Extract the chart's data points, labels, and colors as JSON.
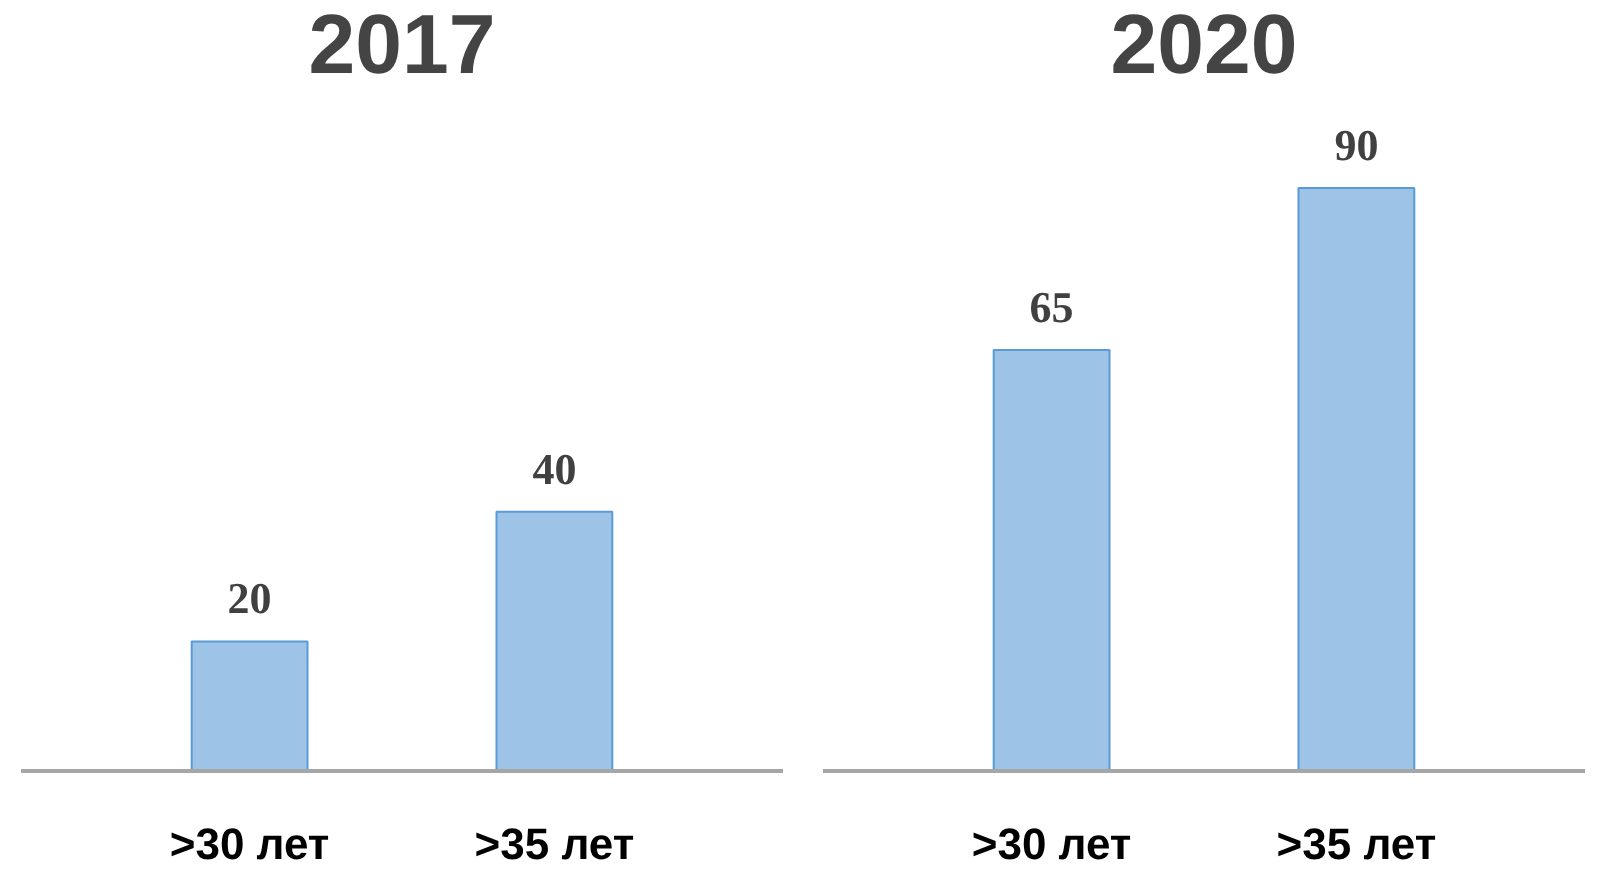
{
  "chart_data": [
    {
      "type": "bar",
      "title": "2017",
      "categories": [
        ">30 лет",
        ">35 лет"
      ],
      "values": [
        20,
        40
      ],
      "color": "#9dc3e6",
      "data_labels": true
    },
    {
      "type": "bar",
      "title": "2020",
      "categories": [
        ">30 лет",
        ">35 лет"
      ],
      "values": [
        65,
        90
      ],
      "color": "#9dc3e6",
      "data_labels": true
    }
  ]
}
